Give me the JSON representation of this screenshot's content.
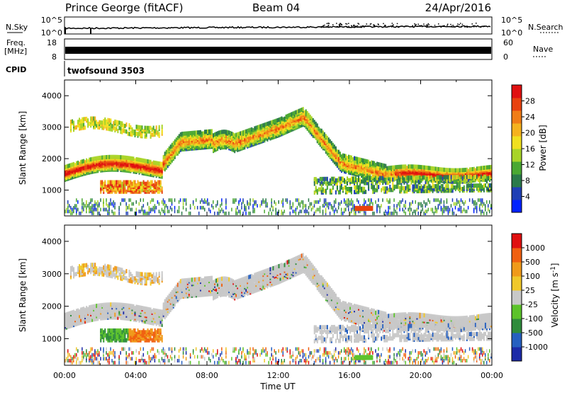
{
  "header": {
    "station": "Prince George (fitACF)",
    "beam": "Beam 04",
    "date": "24/Apr/2016"
  },
  "top_panels": {
    "nsky_label": "N.Sky",
    "nsearch_label": "N.Search",
    "nsky_ticks": [
      "10^5",
      "10^0"
    ],
    "nsearch_ticks": [
      "10^5",
      "10^0"
    ],
    "freq_label_1": "Freq.",
    "freq_label_2": "[MHz]",
    "freq_ticks": [
      "18",
      "8"
    ],
    "nave_label": "Nave",
    "nave_ticks": [
      "60",
      "0"
    ],
    "cpid_label": "CPID",
    "cpid_value": "twofsound 3503"
  },
  "chart_data": [
    {
      "type": "heatmap",
      "id": "power",
      "ylabel": "Slant Range [km]",
      "yticks": [
        1000,
        2000,
        3000,
        4000
      ],
      "ylim": [
        180,
        4500
      ],
      "xlim": [
        0,
        24
      ],
      "colorbar": {
        "label": "Power [dB]",
        "ticks": [
          "4",
          "8",
          "12",
          "16",
          "20",
          "24",
          "28"
        ],
        "colors": [
          "#0022ff",
          "#1f3fb5",
          "#2a7a4a",
          "#4aa832",
          "#a8d428",
          "#f0e020",
          "#f5b21e",
          "#f07d16",
          "#e8420f",
          "#e01010"
        ]
      },
      "bands": [
        {
          "range_km": [
            1300,
            1900
          ],
          "hours": [
            0,
            5.7
          ],
          "power_dB": 24,
          "note": "main E/F band rising"
        },
        {
          "range_km": [
            2200,
            3300
          ],
          "hours": [
            5.7,
            13
          ],
          "power_dB": 14
        },
        {
          "range_km": [
            1100,
            2700
          ],
          "hours": [
            13,
            18
          ],
          "power_dB": 12
        },
        {
          "range_km": [
            1300,
            1900
          ],
          "hours": [
            18,
            24
          ],
          "power_dB": 20
        },
        {
          "range_km": [
            900,
            1300
          ],
          "hours": [
            2,
            6
          ],
          "power_dB": 26
        },
        {
          "range_km": [
            380,
            480
          ],
          "hours": [
            16.3,
            17.3
          ],
          "power_dB": 28
        }
      ]
    },
    {
      "type": "heatmap",
      "id": "velocity",
      "ylabel": "Slant Range [km]",
      "yticks": [
        1000,
        2000,
        3000,
        4000
      ],
      "ylim": [
        180,
        4500
      ],
      "xlim": [
        0,
        24
      ],
      "xlabel": "Time UT",
      "xticks": [
        "00:00",
        "04:00",
        "08:00",
        "12:00",
        "16:00",
        "20:00",
        "00:00"
      ],
      "colorbar": {
        "label": "Velocity [m s^-1]",
        "ticks": [
          "1000",
          "500",
          "100",
          "25",
          "-25",
          "-100",
          "-500",
          "-1000"
        ],
        "colors": [
          "#1c2aa8",
          "#2660c0",
          "#2f8c3c",
          "#5cc32a",
          "#c8c8c8",
          "#f0c82a",
          "#f09a1a",
          "#f06010",
          "#e01010"
        ]
      },
      "bands": [
        {
          "range_km": [
            1000,
            1500
          ],
          "hours": [
            3.5,
            5.5
          ],
          "velocity_ms": -500
        },
        {
          "range_km": [
            1500,
            3400
          ],
          "hours": [
            0,
            24
          ],
          "velocity_ms": 0
        }
      ]
    }
  ]
}
